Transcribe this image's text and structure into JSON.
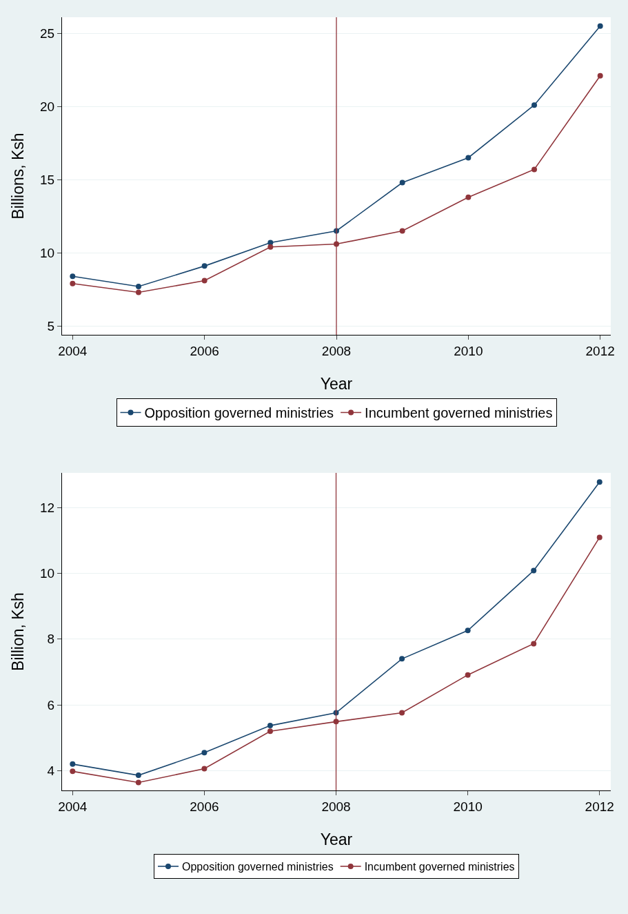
{
  "chart_data": [
    {
      "type": "line",
      "xlabel": "Year",
      "ylabel": "Billions, Ksh",
      "x": [
        2004,
        2005,
        2006,
        2007,
        2008,
        2009,
        2010,
        2011,
        2012
      ],
      "series": [
        {
          "name": "Opposition governed ministries",
          "color": "#1a476f",
          "values": [
            8.4,
            7.7,
            9.1,
            10.7,
            11.5,
            14.8,
            16.5,
            20.1,
            25.5
          ]
        },
        {
          "name": "Incumbent governed ministries",
          "color": "#90353b",
          "values": [
            7.9,
            7.3,
            8.1,
            10.4,
            10.6,
            11.5,
            13.8,
            15.7,
            22.1
          ]
        }
      ],
      "xlim": [
        2003.84,
        2012.16
      ],
      "xticks": [
        2004,
        2006,
        2008,
        2010,
        2012
      ],
      "ylim": [
        4.4,
        26.1
      ],
      "yticks": [
        5,
        10,
        15,
        20,
        25
      ],
      "ref_lines": [
        {
          "axis": "x",
          "value": 2008,
          "color": "#90353b"
        }
      ],
      "grid": "y",
      "legend": "bottom",
      "marker": "circle",
      "line_style": "solid"
    },
    {
      "type": "line",
      "xlabel": "Year",
      "ylabel": "Billion, Ksh",
      "x": [
        2004,
        2005,
        2006,
        2007,
        2008,
        2009,
        2010,
        2011,
        2012
      ],
      "series": [
        {
          "name": "Opposition governed ministries",
          "color": "#1a476f",
          "values": [
            4.2,
            3.86,
            4.55,
            5.37,
            5.76,
            7.4,
            8.26,
            10.08,
            12.77
          ]
        },
        {
          "name": "Incumbent governed ministries",
          "color": "#90353b",
          "values": [
            3.98,
            3.64,
            4.06,
            5.2,
            5.49,
            5.76,
            6.91,
            7.86,
            11.09
          ]
        }
      ],
      "xlim": [
        2003.84,
        2012.17
      ],
      "xticks": [
        2004,
        2006,
        2008,
        2010,
        2012
      ],
      "ylim": [
        3.4,
        13.05
      ],
      "yticks": [
        4,
        6,
        8,
        10,
        12
      ],
      "ref_lines": [
        {
          "axis": "x",
          "value": 2008,
          "color": "#90353b"
        }
      ],
      "grid": "y",
      "legend": "bottom",
      "marker": "circle",
      "line_style": "solid"
    }
  ]
}
